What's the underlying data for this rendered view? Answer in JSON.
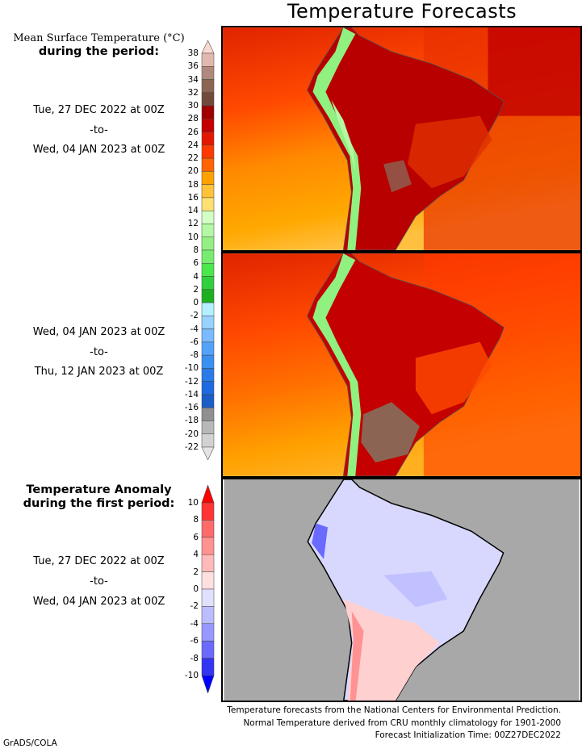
{
  "title": "Temperature Forecasts",
  "left_labels": {
    "mean_heading_line1": "Mean Surface Temperature (°C)",
    "mean_heading_line2": "during the period:",
    "period1": {
      "start": "Tue, 27 DEC 2022 at 00Z",
      "sep": "-to-",
      "end": "Wed, 04 JAN 2023 at 00Z"
    },
    "period2": {
      "start": "Wed, 04 JAN 2023 at 00Z",
      "sep": "-to-",
      "end": "Thu, 12 JAN 2023 at 00Z"
    },
    "anomaly_heading_line1": "Temperature Anomaly",
    "anomaly_heading_line2": "during the first period:",
    "period3": {
      "start": "Tue, 27 DEC 2022 at 00Z",
      "sep": "-to-",
      "end": "Wed, 04 JAN 2023 at 00Z"
    }
  },
  "temperature_colorbar": {
    "labels": [
      "38",
      "36",
      "34",
      "32",
      "30",
      "28",
      "26",
      "24",
      "22",
      "20",
      "18",
      "16",
      "14",
      "12",
      "10",
      "8",
      "6",
      "4",
      "2",
      "0",
      "-2",
      "-4",
      "-6",
      "-8",
      "-10",
      "-12",
      "-14",
      "-16",
      "-18",
      "-20",
      "-22"
    ],
    "colors": [
      "#e2b8ae",
      "#b0887c",
      "#8c6454",
      "#724a3c",
      "#a00000",
      "#c40000",
      "#e41800",
      "#ff3a00",
      "#ff6400",
      "#ffa200",
      "#ffc238",
      "#ffe070",
      "#d2ffc4",
      "#b4f8a4",
      "#94f084",
      "#78ec70",
      "#4ae84a",
      "#32d03e",
      "#1eb020",
      "#b4f0ff",
      "#98d2ff",
      "#7abaff",
      "#52a2f8",
      "#3a90f0",
      "#2a7ae8",
      "#1e6ae0",
      "#1a5ec8",
      "#909090",
      "#b8b8b8",
      "#d2d2d2"
    ],
    "over_color": "#f8d8d0",
    "under_color": "#e4e4e4"
  },
  "anomaly_colorbar": {
    "labels": [
      "10",
      "8",
      "6",
      "4",
      "2",
      "0",
      "-2",
      "-4",
      "-6",
      "-8",
      "-10"
    ],
    "colors": [
      "#ff3434",
      "#ff6a6a",
      "#ff9292",
      "#ffbaba",
      "#ffe0e0",
      "#e0e0ff",
      "#bcbcff",
      "#9898ff",
      "#6a6aff",
      "#3434f4"
    ],
    "over_color": "#ff0000",
    "under_color": "#0000ff"
  },
  "footer": {
    "line1": "Temperature forecasts from the National Centers for Environmental Prediction.",
    "line2": "Normal Temperature derived from CRU monthly climatology for 1901-2000",
    "line3": "Forecast Initialization Time: 00Z27DEC2022"
  },
  "credit": "GrADS/COLA"
}
